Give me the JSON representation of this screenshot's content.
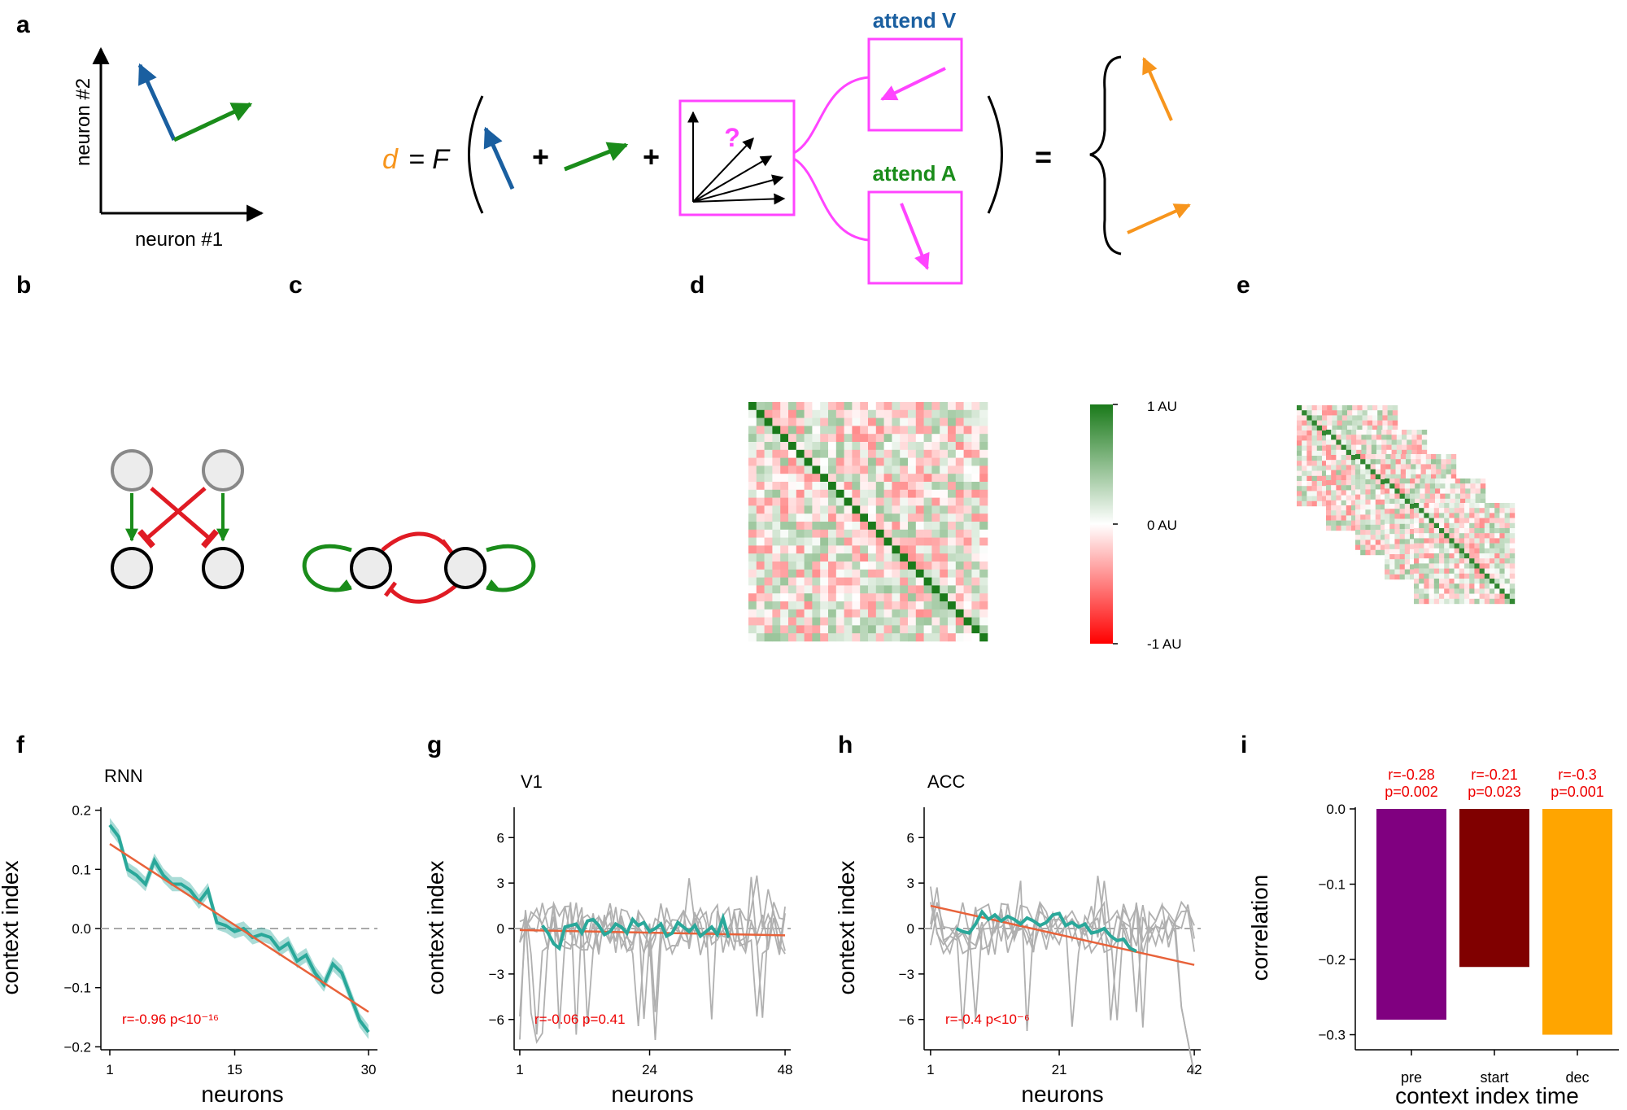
{
  "panel_letters": {
    "a": "a",
    "b": "b",
    "c": "c",
    "d": "d",
    "e": "e",
    "f": "f",
    "g": "g",
    "h": "h",
    "i": "i"
  },
  "panel_a": {
    "x_axis_label": "neuron #1",
    "y_axis_label": "neuron #2",
    "eq_d": "d",
    "eq_equals_F": "= F",
    "plus": "+",
    "question": "?",
    "attend_v": "attend V",
    "attend_a": "attend A",
    "equals": "=",
    "colors": {
      "blue": "#1a5fa0",
      "green": "#1a8c1a",
      "magenta": "#ff44ff",
      "orange": "#f7951d"
    }
  },
  "panel_d": {
    "colorbar_labels": [
      "1 AU",
      "0 AU",
      "-1 AU"
    ],
    "colors": {
      "positive": "#1a7a1a",
      "zero": "#ffffff",
      "negative": "#ff0000"
    }
  },
  "chart_data": [
    {
      "id": "f",
      "type": "line",
      "title": "RNN",
      "xlabel": "neurons",
      "ylabel": "context index",
      "xlim": [
        0,
        31
      ],
      "ylim": [
        -0.2,
        0.2
      ],
      "xticks": [
        1,
        15,
        30
      ],
      "yticks": [
        -0.2,
        -0.1,
        0.0,
        0.1,
        0.2
      ],
      "ytick_labels": [
        "−0.2",
        "−0.1",
        "0.0",
        "0.1",
        "0.2"
      ],
      "x": [
        1,
        2,
        3,
        4,
        5,
        6,
        7,
        8,
        9,
        10,
        11,
        12,
        13,
        14,
        15,
        16,
        17,
        18,
        19,
        20,
        21,
        22,
        23,
        24,
        25,
        26,
        27,
        28,
        29,
        30
      ],
      "series": [
        {
          "name": "mean",
          "color": "#2aa89a",
          "values": [
            0.175,
            0.155,
            0.1,
            0.09,
            0.075,
            0.115,
            0.09,
            0.075,
            0.075,
            0.065,
            0.045,
            0.065,
            0.01,
            0.005,
            -0.005,
            0.0,
            -0.015,
            -0.01,
            -0.015,
            -0.035,
            -0.025,
            -0.055,
            -0.045,
            -0.075,
            -0.095,
            -0.06,
            -0.075,
            -0.115,
            -0.155,
            -0.175
          ],
          "band": 0.012
        },
        {
          "name": "fit",
          "color": "#e8623a",
          "x_range": [
            1,
            30
          ],
          "values_at_ends": [
            0.143,
            -0.141
          ]
        }
      ],
      "annotation": "r=-0.96 p<10⁻¹⁶"
    },
    {
      "id": "g",
      "type": "line",
      "title": "V1",
      "xlabel": "neurons",
      "ylabel": "context index",
      "xlim": [
        0,
        49
      ],
      "ylim": [
        -8,
        8
      ],
      "xticks": [
        1,
        24,
        48
      ],
      "yticks": [
        -6,
        -3,
        0,
        3,
        6
      ],
      "ytick_labels": [
        "−6",
        "−3",
        "0",
        "3",
        "6"
      ],
      "mean_x_start": 5,
      "mean_values": [
        0.2,
        -0.3,
        -1.0,
        -1.3,
        0.1,
        0.2,
        0.3,
        -0.3,
        0.5,
        0.6,
        0.2,
        -0.4,
        -0.2,
        0.3,
        0.1,
        -0.3,
        0.6,
        0.2,
        0.4,
        -0.2,
        0.0,
        0.3,
        -0.5,
        -0.3,
        0.4,
        0.1,
        -0.2,
        0.2,
        -0.5,
        -0.2,
        0.1,
        -0.4,
        0.7,
        -0.6
      ],
      "fit_ends": [
        [
          1,
          -0.1
        ],
        [
          48,
          -0.45
        ]
      ],
      "annotation": "r=-0.06 p=0.41"
    },
    {
      "id": "h",
      "type": "line",
      "title": "ACC",
      "xlabel": "neurons",
      "ylabel": "context index",
      "xlim": [
        0,
        43
      ],
      "ylim": [
        -8,
        8
      ],
      "xticks": [
        1,
        21,
        42
      ],
      "yticks": [
        -6,
        -3,
        0,
        3,
        6
      ],
      "ytick_labels": [
        "−6",
        "−3",
        "0",
        "3",
        "6"
      ],
      "mean_x_start": 5,
      "mean_values": [
        0.0,
        -0.2,
        -0.3,
        0.3,
        1.1,
        0.6,
        0.9,
        0.5,
        0.8,
        0.6,
        0.3,
        0.7,
        0.5,
        0.2,
        0.4,
        0.9,
        1.0,
        0.2,
        0.4,
        0.1,
        0.3,
        -0.3,
        -0.2,
        0.0,
        -0.5,
        -0.8,
        -0.7,
        -1.3,
        -1.5
      ],
      "fit_ends": [
        [
          1,
          1.5
        ],
        [
          42,
          -2.4
        ]
      ],
      "annotation": "r=-0.4 p<10⁻⁶"
    },
    {
      "id": "i",
      "type": "bar",
      "xlabel": "context index time",
      "ylabel": "correlation",
      "categories": [
        "pre",
        "start",
        "dec"
      ],
      "values": [
        -0.28,
        -0.21,
        -0.3
      ],
      "colors": [
        "#800080",
        "#800000",
        "#ffa500"
      ],
      "ylim": [
        -0.32,
        0.0
      ],
      "yticks": [
        0.0,
        -0.1,
        -0.2,
        -0.3
      ],
      "ytick_labels": [
        "0.0",
        "−0.1",
        "−0.2",
        "−0.3"
      ],
      "labels_r": [
        "r=-0.28",
        "r=-0.21",
        "r=-0.3"
      ],
      "labels_p": [
        "p=0.002",
        "p=0.023",
        "p=0.001"
      ]
    }
  ]
}
